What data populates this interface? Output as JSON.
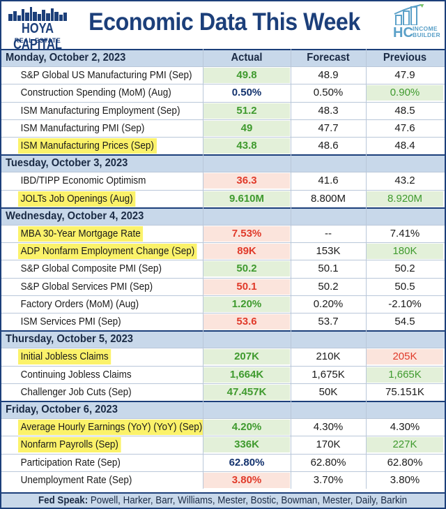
{
  "header": {
    "title": "Economic Data This Week",
    "logo_left_name": "HOYA CAPITAL",
    "logo_left_sub": "REAL ESTATE",
    "logo_right_mark": "HC",
    "logo_right_text_1": "INCOME",
    "logo_right_text_2": "BUILDER"
  },
  "columns": {
    "actual": "Actual",
    "forecast": "Forecast",
    "previous": "Previous"
  },
  "sections": [
    {
      "day": "Monday, October 2, 2023",
      "rows": [
        {
          "label": "S&P Global US Manufacturing PMI (Sep)",
          "actual": "49.8",
          "forecast": "48.9",
          "previous": "47.9",
          "highlight": false
        },
        {
          "label": "Construction Spending (MoM) (Aug)",
          "actual": "0.50%",
          "forecast": "0.50%",
          "previous": "0.90%",
          "highlight": false
        },
        {
          "label": "ISM Manufacturing Employment (Sep)",
          "actual": "51.2",
          "forecast": "48.3",
          "previous": "48.5",
          "highlight": false
        },
        {
          "label": "ISM Manufacturing PMI (Sep)",
          "actual": "49",
          "forecast": "47.7",
          "previous": "47.6",
          "highlight": false
        },
        {
          "label": "ISM Manufacturing Prices (Sep)",
          "actual": "43.8",
          "forecast": "48.6",
          "previous": "48.4",
          "highlight": true
        }
      ]
    },
    {
      "day": "Tuesday, October 3, 2023",
      "rows": [
        {
          "label": "IBD/TIPP Economic Optimism",
          "actual": "36.3",
          "forecast": "41.6",
          "previous": "43.2",
          "highlight": false
        },
        {
          "label": "JOLTs Job Openings (Aug)",
          "actual": "9.610M",
          "forecast": "8.800M",
          "previous": "8.920M",
          "highlight": true
        }
      ]
    },
    {
      "day": "Wednesday, October 4, 2023",
      "rows": [
        {
          "label": "MBA 30-Year Mortgage Rate",
          "actual": "7.53%",
          "forecast": "--",
          "previous": "7.41%",
          "highlight": true
        },
        {
          "label": "ADP Nonfarm Employment Change (Sep)",
          "actual": "89K",
          "forecast": "153K",
          "previous": "180K",
          "highlight": true
        },
        {
          "label": "S&P Global Composite PMI (Sep)",
          "actual": "50.2",
          "forecast": "50.1",
          "previous": "50.2",
          "highlight": false
        },
        {
          "label": "S&P Global Services PMI (Sep)",
          "actual": "50.1",
          "forecast": "50.2",
          "previous": "50.5",
          "highlight": false
        },
        {
          "label": "Factory Orders (MoM) (Aug)",
          "actual": "1.20%",
          "forecast": "0.20%",
          "previous": "-2.10%",
          "highlight": false
        },
        {
          "label": "ISM Services PMI (Sep)",
          "actual": "53.6",
          "forecast": "53.7",
          "previous": "54.5",
          "highlight": false
        }
      ]
    },
    {
      "day": "Thursday, October 5, 2023",
      "rows": [
        {
          "label": "Initial Jobless Claims",
          "actual": "207K",
          "forecast": "210K",
          "previous": "205K",
          "highlight": true
        },
        {
          "label": "Continuing Jobless Claims",
          "actual": "1,664K",
          "forecast": "1,675K",
          "previous": "1,665K",
          "highlight": false
        },
        {
          "label": "Challenger Job Cuts (Sep)",
          "actual": "47.457K",
          "forecast": "50K",
          "previous": "75.151K",
          "highlight": false
        }
      ]
    },
    {
      "day": "Friday, October 6, 2023",
      "rows": [
        {
          "label": "Average Hourly Earnings (YoY) (YoY) (Sep)",
          "actual": "4.20%",
          "forecast": "4.30%",
          "previous": "4.30%",
          "highlight": true
        },
        {
          "label": "Nonfarm Payrolls (Sep)",
          "actual": "336K",
          "forecast": "170K",
          "previous": "227K",
          "highlight": true
        },
        {
          "label": "Participation Rate (Sep)",
          "actual": "62.80%",
          "forecast": "62.80%",
          "previous": "62.80%",
          "highlight": false
        },
        {
          "label": "Unemployment Rate (Sep)",
          "actual": "3.80%",
          "forecast": "3.70%",
          "previous": "3.80%",
          "highlight": false
        }
      ]
    }
  ],
  "footer": {
    "label": "Fed Speak:",
    "text": "Powell, Harker, Barr, Williams, Mester, Bostic, Bowman, Mester, Daily, Barkin"
  },
  "colors": {
    "brand_navy": "#1c3f7a",
    "section_bg": "#c8d8ea",
    "highlight_yellow": "#fbf26a",
    "beat_green_bg": "#e3f0d9",
    "miss_red_bg": "#fbe4dc",
    "green_text": "#3f9a2e",
    "red_text": "#e03a2a"
  }
}
